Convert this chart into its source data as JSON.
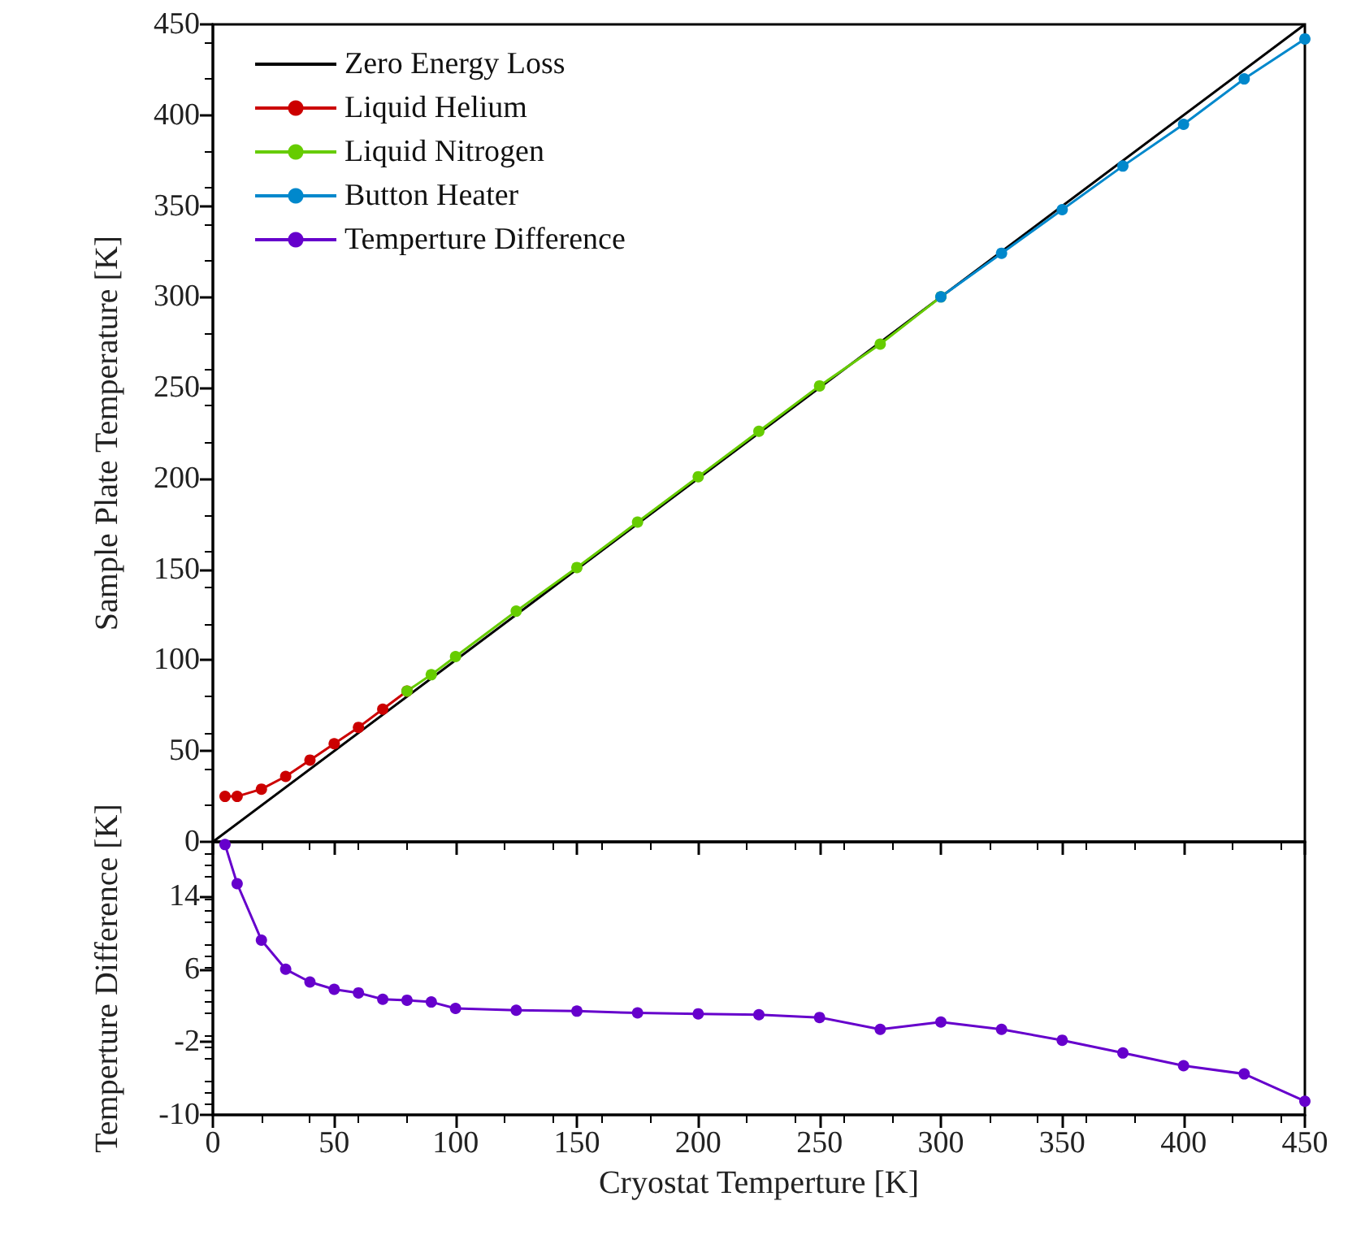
{
  "chart_data": [
    {
      "type": "line",
      "ylabel": "Sample Plate Temperature [K]",
      "xlim": [
        0,
        450
      ],
      "xticks": [
        0,
        50,
        100,
        150,
        200,
        250,
        300,
        350,
        400,
        450
      ],
      "ylim": [
        0,
        450
      ],
      "yticks": [
        0,
        50,
        100,
        150,
        200,
        250,
        300,
        350,
        400,
        450
      ],
      "tick_labels": "y",
      "legend": "top left",
      "grid": false,
      "series": [
        {
          "name": "Zero Energy Loss",
          "color": "#000000",
          "marker": "none",
          "x": [
            0,
            450
          ],
          "values": [
            0,
            450
          ]
        },
        {
          "name": "Liquid Helium",
          "color": "#cc0000",
          "marker": "circle",
          "x": [
            5,
            10,
            20,
            30,
            40,
            50,
            60,
            70,
            80
          ],
          "values": [
            25,
            25,
            29,
            36,
            45,
            54,
            63,
            73,
            83
          ]
        },
        {
          "name": "Liquid Nitrogen",
          "color": "#66cc00",
          "marker": "circle",
          "x": [
            80,
            90,
            100,
            125,
            150,
            175,
            200,
            225,
            250,
            275,
            300
          ],
          "values": [
            83,
            92,
            102,
            127,
            151,
            176,
            201,
            226,
            251,
            274,
            300
          ]
        },
        {
          "name": "Button Heater",
          "color": "#0088cc",
          "marker": "circle",
          "x": [
            300,
            325,
            350,
            375,
            400,
            425,
            450
          ],
          "values": [
            300,
            324,
            348,
            372,
            395,
            420,
            442
          ]
        }
      ]
    },
    {
      "type": "line",
      "xlabel": "Cryostat Temperture [K]",
      "ylabel": "Temperture Difference [K]",
      "xlim": [
        0,
        450
      ],
      "xticks": [
        0,
        50,
        100,
        150,
        200,
        250,
        300,
        350,
        400,
        450
      ],
      "ylim": [
        -10,
        20
      ],
      "yticks": [
        -10,
        -2,
        6,
        14
      ],
      "grid": false,
      "series": [
        {
          "name": "Temperture Difference",
          "color": "#6600cc",
          "marker": "circle",
          "x": [
            5,
            10,
            20,
            30,
            40,
            50,
            60,
            70,
            80,
            90,
            100,
            125,
            150,
            175,
            200,
            225,
            250,
            275,
            300,
            325,
            350,
            375,
            400,
            425,
            450
          ],
          "values": [
            19.7,
            15.4,
            9.2,
            6,
            4.6,
            3.8,
            3.4,
            2.7,
            2.6,
            2.4,
            1.7,
            1.5,
            1.4,
            1.2,
            1.1,
            1,
            0.7,
            -0.6,
            0.2,
            -0.6,
            -1.8,
            -3.2,
            -4.6,
            -5.5,
            -8.5
          ]
        }
      ]
    }
  ]
}
